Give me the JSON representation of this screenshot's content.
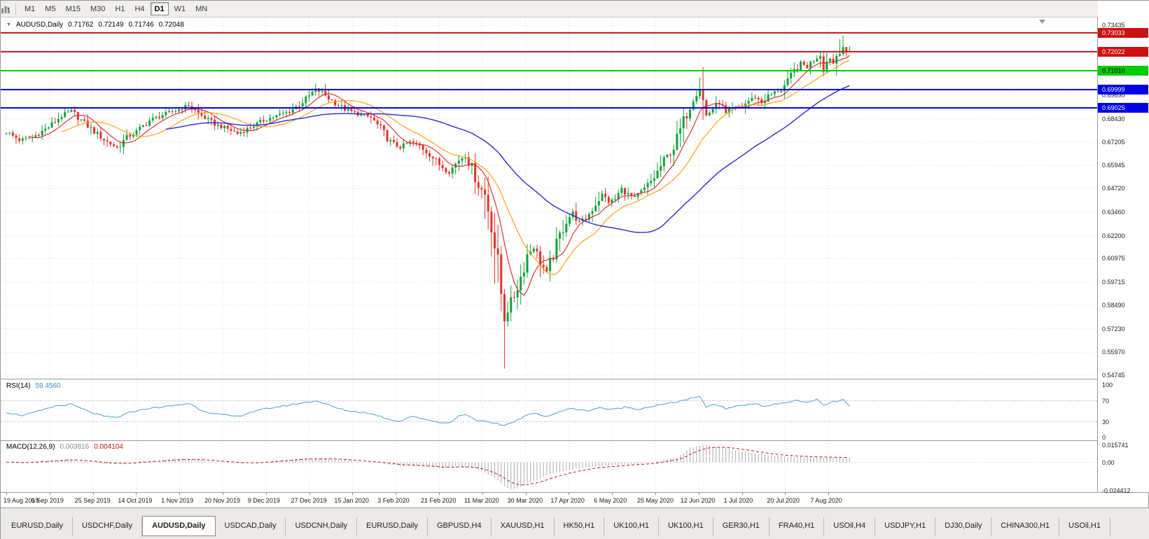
{
  "toolbar": {
    "timeframes": [
      "M1",
      "M5",
      "M15",
      "M30",
      "H1",
      "H4",
      "D1",
      "W1",
      "MN"
    ],
    "active_timeframe": "D1",
    "chart_icon": "bar-chart-icon",
    "caret_glyph": "▾"
  },
  "chart_header": {
    "dropdown_glyph": "▼"
  },
  "tabs": {
    "items": [
      "EURUSD,Daily",
      "USDCHF,Daily",
      "AUDUSD,Daily",
      "USDCAD,Daily",
      "USDCNH,Daily",
      "EURUSD,Daily",
      "GBPUSD,H4",
      "XAUUSD,H1",
      "HK50,H1",
      "UK100,H1",
      "UK100,H1",
      "GER30,H1",
      "FRA40,H1",
      "USOil,H4",
      "USDJPY,H1",
      "DJ30,Daily",
      "CHINA300,H1",
      "USOil,H1"
    ],
    "active_index": 2
  },
  "chart_data": [
    {
      "type": "candlestick",
      "symbol": "AUDUSD,Daily",
      "timeframe": "D1",
      "ohlc_display": {
        "open": "0.71762",
        "high": "0.72149",
        "low": "0.71746",
        "close": "0.72048"
      },
      "y_range": [
        0.5456,
        0.7385
      ],
      "y_tick_labels": [
        "0.73435",
        "0.69690",
        "0.68430",
        "0.67205",
        "0.65945",
        "0.64720",
        "0.63460",
        "0.62200",
        "0.60975",
        "0.59715",
        "0.58490",
        "0.57230",
        "0.55970",
        "0.54745"
      ],
      "x_tick_labels": [
        "19 Aug 2019",
        "6 Sep 2019",
        "25 Sep 2019",
        "14 Oct 2019",
        "1 Nov 2019",
        "20 Nov 2019",
        "9 Dec 2019",
        "27 Dec 2019",
        "15 Jan 2020",
        "3 Feb 2020",
        "21 Feb 2020",
        "11 Mar 2020",
        "30 Mar 2020",
        "17 Apr 2020",
        "6 May 2020",
        "25 May 2020",
        "12 Jun 2020",
        "1 Jul 2020",
        "20 Jul 2020",
        "7 Aug 2020"
      ],
      "n_candles": 260,
      "up_color": "#10a339",
      "down_color": "#e2332b",
      "horizontal_lines": [
        {
          "value": "0.73033",
          "color": "#cc1111",
          "text_color": "#ffffff"
        },
        {
          "value": "0.72022",
          "color": "#cc1111",
          "text_color": "#ffffff"
        },
        {
          "value": "0.71010",
          "color": "#00cc00",
          "text_color": "#000000"
        },
        {
          "value": "0.69999",
          "color": "#0000e6",
          "text_color": "#ffffff"
        },
        {
          "value": "0.69025",
          "color": "#0000e6",
          "text_color": "#ffffff"
        }
      ],
      "moving_averages": [
        {
          "window": 8,
          "color": "#e32222",
          "width": 1.1
        },
        {
          "window": 18,
          "color": "#ff9a00",
          "width": 1.1
        },
        {
          "window": 50,
          "color": "#2b2bd4",
          "width": 1.4
        }
      ],
      "close_anchors": [
        [
          0,
          0.6775
        ],
        [
          4,
          0.673
        ],
        [
          8,
          0.6745
        ],
        [
          13,
          0.68
        ],
        [
          17,
          0.686
        ],
        [
          20,
          0.6885
        ],
        [
          24,
          0.682
        ],
        [
          27,
          0.6775
        ],
        [
          31,
          0.672
        ],
        [
          34,
          0.669
        ],
        [
          37,
          0.6745
        ],
        [
          40,
          0.6775
        ],
        [
          44,
          0.6835
        ],
        [
          48,
          0.6865
        ],
        [
          53,
          0.6895
        ],
        [
          56,
          0.6915
        ],
        [
          60,
          0.686
        ],
        [
          64,
          0.6815
        ],
        [
          68,
          0.679
        ],
        [
          71,
          0.6765
        ],
        [
          75,
          0.68
        ],
        [
          79,
          0.6835
        ],
        [
          83,
          0.686
        ],
        [
          87,
          0.6885
        ],
        [
          90,
          0.692
        ],
        [
          93,
          0.6965
        ],
        [
          95,
          0.7
        ],
        [
          97,
          0.6985
        ],
        [
          100,
          0.694
        ],
        [
          104,
          0.6895
        ],
        [
          108,
          0.687
        ],
        [
          112,
          0.685
        ],
        [
          115,
          0.679
        ],
        [
          118,
          0.672
        ],
        [
          121,
          0.669
        ],
        [
          124,
          0.672
        ],
        [
          127,
          0.67
        ],
        [
          130,
          0.6655
        ],
        [
          133,
          0.66
        ],
        [
          136,
          0.656
        ],
        [
          139,
          0.6625
        ],
        [
          141,
          0.665
        ],
        [
          143,
          0.658
        ],
        [
          145,
          0.649
        ],
        [
          147,
          0.644
        ],
        [
          149,
          0.629
        ],
        [
          151,
          0.605
        ],
        [
          153,
          0.578
        ],
        [
          154,
          0.583
        ],
        [
          156,
          0.59
        ],
        [
          158,
          0.6
        ],
        [
          160,
          0.612
        ],
        [
          162,
          0.616
        ],
        [
          164,
          0.608
        ],
        [
          166,
          0.602
        ],
        [
          168,
          0.612
        ],
        [
          170,
          0.622
        ],
        [
          172,
          0.63
        ],
        [
          174,
          0.6345
        ],
        [
          176,
          0.629
        ],
        [
          178,
          0.631
        ],
        [
          181,
          0.639
        ],
        [
          183,
          0.644
        ],
        [
          185,
          0.64
        ],
        [
          187,
          0.6415
        ],
        [
          189,
          0.647
        ],
        [
          191,
          0.644
        ],
        [
          193,
          0.642
        ],
        [
          196,
          0.647
        ],
        [
          199,
          0.653
        ],
        [
          202,
          0.662
        ],
        [
          205,
          0.669
        ],
        [
          208,
          0.683
        ],
        [
          211,
          0.696
        ],
        [
          213,
          0.701
        ],
        [
          214,
          0.694
        ],
        [
          215,
          0.686
        ],
        [
          217,
          0.69
        ],
        [
          219,
          0.693
        ],
        [
          221,
          0.687
        ],
        [
          223,
          0.69
        ],
        [
          226,
          0.691
        ],
        [
          228,
          0.694
        ],
        [
          230,
          0.696
        ],
        [
          232,
          0.693
        ],
        [
          234,
          0.6965
        ],
        [
          236,
          0.6985
        ],
        [
          238,
          0.7
        ],
        [
          240,
          0.704
        ],
        [
          242,
          0.71
        ],
        [
          244,
          0.714
        ],
        [
          246,
          0.712
        ],
        [
          248,
          0.716
        ],
        [
          250,
          0.719
        ],
        [
          251,
          0.711
        ],
        [
          252,
          0.715
        ],
        [
          253,
          0.717
        ],
        [
          254,
          0.714
        ],
        [
          255,
          0.7185
        ],
        [
          256,
          0.721
        ],
        [
          257,
          0.723
        ],
        [
          258,
          0.719
        ],
        [
          259,
          0.7205
        ]
      ],
      "wick_events": [
        {
          "i": 95,
          "h": 0.7032
        },
        {
          "i": 147,
          "l": 0.631
        },
        {
          "i": 152,
          "l": 0.5815
        },
        {
          "i": 153,
          "l": 0.551
        },
        {
          "i": 213,
          "h": 0.7064
        },
        {
          "i": 256,
          "h": 0.727
        },
        {
          "i": 257,
          "h": 0.729
        }
      ]
    },
    {
      "type": "line",
      "name": "RSI(14)",
      "current_value": "59.4560",
      "y_range": [
        0,
        100
      ],
      "color": "#4a9fdc",
      "levels": [
        {
          "text": "100",
          "v": 100,
          "line": false
        },
        {
          "text": "70",
          "v": 70,
          "line": true
        },
        {
          "text": "30",
          "v": 30,
          "line": true
        },
        {
          "text": "0",
          "v": 0,
          "line": false
        }
      ],
      "anchors": [
        [
          0,
          48
        ],
        [
          5,
          42
        ],
        [
          10,
          50
        ],
        [
          15,
          60
        ],
        [
          20,
          63
        ],
        [
          25,
          50
        ],
        [
          30,
          40
        ],
        [
          34,
          38
        ],
        [
          38,
          48
        ],
        [
          43,
          55
        ],
        [
          48,
          58
        ],
        [
          53,
          62
        ],
        [
          56,
          65
        ],
        [
          60,
          52
        ],
        [
          64,
          45
        ],
        [
          68,
          42
        ],
        [
          71,
          40
        ],
        [
          75,
          48
        ],
        [
          80,
          55
        ],
        [
          85,
          60
        ],
        [
          90,
          65
        ],
        [
          95,
          70
        ],
        [
          98,
          64
        ],
        [
          102,
          55
        ],
        [
          106,
          50
        ],
        [
          110,
          48
        ],
        [
          114,
          42
        ],
        [
          118,
          34
        ],
        [
          121,
          31
        ],
        [
          124,
          40
        ],
        [
          128,
          36
        ],
        [
          132,
          30
        ],
        [
          136,
          27
        ],
        [
          139,
          41
        ],
        [
          141,
          45
        ],
        [
          144,
          34
        ],
        [
          147,
          30
        ],
        [
          150,
          26
        ],
        [
          153,
          23
        ],
        [
          156,
          31
        ],
        [
          158,
          36
        ],
        [
          160,
          43
        ],
        [
          163,
          46
        ],
        [
          166,
          40
        ],
        [
          170,
          49
        ],
        [
          174,
          56
        ],
        [
          178,
          50
        ],
        [
          182,
          57
        ],
        [
          186,
          53
        ],
        [
          190,
          58
        ],
        [
          194,
          54
        ],
        [
          198,
          59
        ],
        [
          202,
          63
        ],
        [
          206,
          68
        ],
        [
          210,
          74
        ],
        [
          213,
          77
        ],
        [
          215,
          59
        ],
        [
          218,
          63
        ],
        [
          221,
          55
        ],
        [
          225,
          61
        ],
        [
          229,
          64
        ],
        [
          233,
          60
        ],
        [
          237,
          64
        ],
        [
          240,
          67
        ],
        [
          243,
          71
        ],
        [
          246,
          66
        ],
        [
          249,
          72
        ],
        [
          251,
          61
        ],
        [
          253,
          66
        ],
        [
          255,
          69
        ],
        [
          257,
          72
        ],
        [
          259,
          59
        ]
      ]
    },
    {
      "type": "bar",
      "name": "MACD(12,26,9)",
      "main_value": "0.003816",
      "signal_value": "0.004104",
      "y_range": [
        -0.024412,
        0.015741
      ],
      "histogram_color": "#ababab",
      "signal_color": "#cc1111",
      "y_tick_labels": [
        {
          "text": "0.015741",
          "v": 0.015741
        },
        {
          "text": "0.00",
          "v": 0
        },
        {
          "text": "-0.024412",
          "v": -0.024412
        }
      ],
      "anchors": [
        [
          0,
          0.0005
        ],
        [
          5,
          -0.0008
        ],
        [
          10,
          0.001
        ],
        [
          15,
          0.002
        ],
        [
          20,
          0.0025
        ],
        [
          25,
          0.0005
        ],
        [
          30,
          -0.001
        ],
        [
          35,
          -0.0015
        ],
        [
          40,
          0.0005
        ],
        [
          45,
          0.0018
        ],
        [
          50,
          0.0024
        ],
        [
          55,
          0.003
        ],
        [
          60,
          0.002
        ],
        [
          65,
          0.0005
        ],
        [
          70,
          -0.001
        ],
        [
          75,
          -0.0005
        ],
        [
          80,
          0.001
        ],
        [
          85,
          0.002
        ],
        [
          90,
          0.003
        ],
        [
          95,
          0.0035
        ],
        [
          100,
          0.003
        ],
        [
          105,
          0.0015
        ],
        [
          110,
          0.0005
        ],
        [
          115,
          -0.001
        ],
        [
          120,
          -0.003
        ],
        [
          125,
          -0.003
        ],
        [
          130,
          -0.004
        ],
        [
          135,
          -0.005
        ],
        [
          139,
          -0.0035
        ],
        [
          142,
          -0.0045
        ],
        [
          145,
          -0.0065
        ],
        [
          148,
          -0.0105
        ],
        [
          151,
          -0.016
        ],
        [
          153,
          -0.021
        ],
        [
          155,
          -0.0244
        ],
        [
          157,
          -0.023
        ],
        [
          159,
          -0.02
        ],
        [
          162,
          -0.016
        ],
        [
          165,
          -0.013
        ],
        [
          168,
          -0.01
        ],
        [
          171,
          -0.008
        ],
        [
          174,
          -0.0062
        ],
        [
          177,
          -0.005
        ],
        [
          180,
          -0.004
        ],
        [
          183,
          -0.0032
        ],
        [
          186,
          -0.0026
        ],
        [
          190,
          -0.002
        ],
        [
          194,
          -0.0014
        ],
        [
          198,
          0.0
        ],
        [
          202,
          0.0022
        ],
        [
          206,
          0.0045
        ],
        [
          208,
          0.008
        ],
        [
          210,
          0.013
        ],
        [
          214,
          0.0155
        ],
        [
          218,
          0.014
        ],
        [
          222,
          0.012
        ],
        [
          226,
          0.01
        ],
        [
          230,
          0.008
        ],
        [
          234,
          0.0065
        ],
        [
          238,
          0.0055
        ],
        [
          242,
          0.005
        ],
        [
          246,
          0.0048
        ],
        [
          250,
          0.0044
        ],
        [
          254,
          0.004
        ],
        [
          259,
          0.0038
        ]
      ]
    }
  ]
}
